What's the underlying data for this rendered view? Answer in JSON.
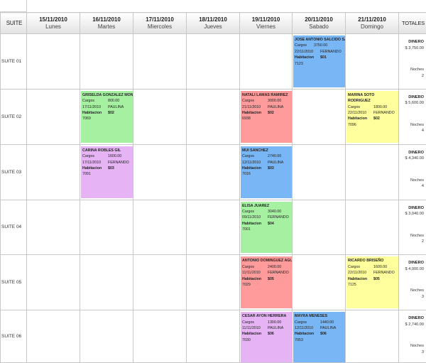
{
  "header": {
    "suite_label": "SUITE",
    "totals_label": "TOTALES",
    "days": [
      {
        "date": "15/11/2010",
        "day": "Lunes"
      },
      {
        "date": "16/11/2010",
        "day": "Martes"
      },
      {
        "date": "17/11/2010",
        "day": "Miercoles"
      },
      {
        "date": "18/11/2010",
        "day": "Jueves"
      },
      {
        "date": "19/11/2010",
        "day": "Viernes"
      },
      {
        "date": "20/11/2010",
        "day": "Sabado"
      },
      {
        "date": "21/11/2010",
        "day": "Domingo"
      }
    ]
  },
  "labels": {
    "cargos": "Cargos",
    "habitacion": "Habitacion",
    "dinero": "DINERO",
    "noches": "Noches"
  },
  "colors": {
    "green": "#a6f0a2",
    "red": "#ff9b9b",
    "blue": "#79b6f5",
    "yellow": "#ffff9e",
    "violet": "#e6b3f5"
  },
  "rows": [
    {
      "suite": "SUITE 01",
      "total": {
        "dinero": "$ 3,750.00",
        "noches": "2"
      },
      "reservations": [
        {
          "name": "JOSE ANTONIO SALCIDO SALCEDO",
          "cargos": "3750.00",
          "date": "22/11/2010",
          "agent": "FERNANDO",
          "room": "$01",
          "code": "7123",
          "color": "blue"
        }
      ]
    },
    {
      "suite": "SUITE 02",
      "total": {
        "dinero": "$ 5,600.00",
        "noches": "4"
      },
      "reservations": [
        {
          "name": "GRISELDA GONZALEZ MONROY",
          "cargos": "800.00",
          "date": "17/11/2010",
          "agent": "PAULINA",
          "room": "$02",
          "code": "7069",
          "color": "green"
        },
        {
          "name": "NATALI LAMAS RAMIREZ",
          "cargos": "3000.00",
          "date": "21/11/2010",
          "agent": "PAULINA",
          "room": "$02",
          "code": "6938",
          "color": "red"
        },
        {
          "name": "MARINA SOTO RODRIGUEZ",
          "cargos": "1800.00",
          "date": "22/11/2010",
          "agent": "FERNANDO",
          "room": "$02",
          "code": "7096",
          "color": "yellow"
        }
      ]
    },
    {
      "suite": "SUITE 03",
      "total": {
        "dinero": "$ 4,340.00",
        "noches": "4"
      },
      "reservations": [
        {
          "name": "CARINA ROBLES GIL",
          "cargos": "1600.00",
          "date": "17/11/2010",
          "agent": "FERNANDO",
          "room": "$03",
          "code": "7091",
          "color": "violet"
        },
        {
          "name": "MUI SANCHEZ",
          "cargos": "2740.00",
          "date": "12/11/2010",
          "agent": "PAULINA",
          "room": "$03",
          "code": "7016",
          "color": "blue"
        }
      ]
    },
    {
      "suite": "SUITE 04",
      "total": {
        "dinero": "$ 3,040.00",
        "noches": "2"
      },
      "reservations": [
        {
          "name": "ELISA JUAREZ",
          "cargos": "3040.00",
          "date": "09/11/2010",
          "agent": "FERNANDO",
          "room": "$04",
          "code": "7001",
          "color": "green"
        }
      ]
    },
    {
      "suite": "SUITE 05",
      "total": {
        "dinero": "$ 4,000.00",
        "noches": "3"
      },
      "reservations": [
        {
          "name": "ANTONIO DOMINGUEZ AGUILAR",
          "cargos": "2400.00",
          "date": "11/11/2010",
          "agent": "FERNANDO",
          "room": "$05",
          "code": "7029",
          "color": "red"
        },
        {
          "name": "RICARDO BRISEÑO",
          "cargos": "1600.00",
          "date": "22/11/2010",
          "agent": "FERNANDO",
          "room": "$05",
          "code": "7125",
          "color": "yellow"
        }
      ]
    },
    {
      "suite": "SUITE 06",
      "total": {
        "dinero": "$ 2,740.00",
        "noches": "3"
      },
      "reservations": [
        {
          "name": "CESAR AYON HERRERA",
          "cargos": "1300.00",
          "date": "11/11/2010",
          "agent": "PAULINA",
          "room": "$06",
          "code": "7030",
          "color": "violet"
        },
        {
          "name": "MAYRA MENESES",
          "cargos": "1440.00",
          "date": "12/11/2010",
          "agent": "PAULINA",
          "room": "$06",
          "code": "7053",
          "color": "blue"
        }
      ]
    }
  ]
}
